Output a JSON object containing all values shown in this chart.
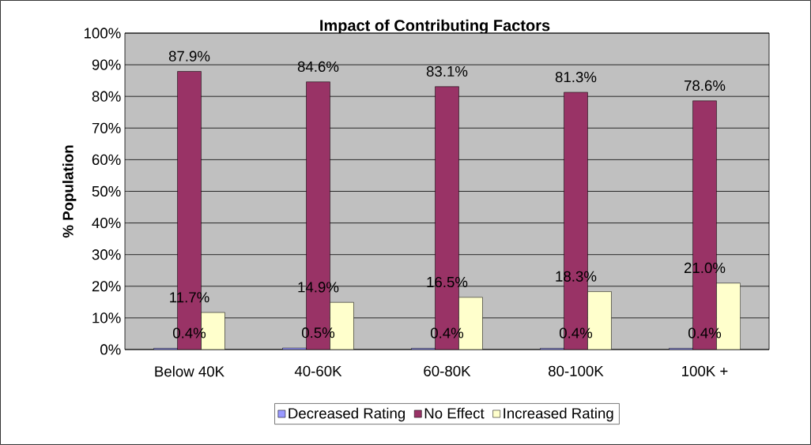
{
  "chart_data": {
    "type": "bar",
    "title": "Impact of Contributing Factors",
    "ylabel": "% Population",
    "categories": [
      "Below 40K",
      "40-60K",
      "60-80K",
      "80-100K",
      "100K +"
    ],
    "series": [
      {
        "name": "Decreased Rating",
        "color": "#9999ff",
        "values": [
          0.4,
          0.5,
          0.4,
          0.4,
          0.4
        ],
        "value_labels": [
          "0.4%",
          "0.5%",
          "0.4%",
          "0.4%",
          "0.4%"
        ]
      },
      {
        "name": "No Effect",
        "color": "#993366",
        "values": [
          87.9,
          84.6,
          83.1,
          81.3,
          78.6
        ],
        "value_labels": [
          "87.9%",
          "84.6%",
          "83.1%",
          "81.3%",
          "78.6%"
        ]
      },
      {
        "name": "Increased Rating",
        "color": "#ffffcc",
        "values": [
          11.7,
          14.9,
          16.5,
          18.3,
          21.0
        ],
        "value_labels": [
          "11.7%",
          "14.9%",
          "16.5%",
          "18.3%",
          "21.0%"
        ]
      }
    ],
    "ylim": [
      0,
      100
    ],
    "yticks": [
      {
        "value": 0,
        "label": "0%"
      },
      {
        "value": 10,
        "label": "10%"
      },
      {
        "value": 20,
        "label": "20%"
      },
      {
        "value": 30,
        "label": "30%"
      },
      {
        "value": 40,
        "label": "40%"
      },
      {
        "value": 50,
        "label": "50%"
      },
      {
        "value": 60,
        "label": "60%"
      },
      {
        "value": 70,
        "label": "70%"
      },
      {
        "value": 80,
        "label": "80%"
      },
      {
        "value": 90,
        "label": "90%"
      },
      {
        "value": 100,
        "label": "100%"
      }
    ],
    "grid": "y",
    "legend": "bottom"
  }
}
